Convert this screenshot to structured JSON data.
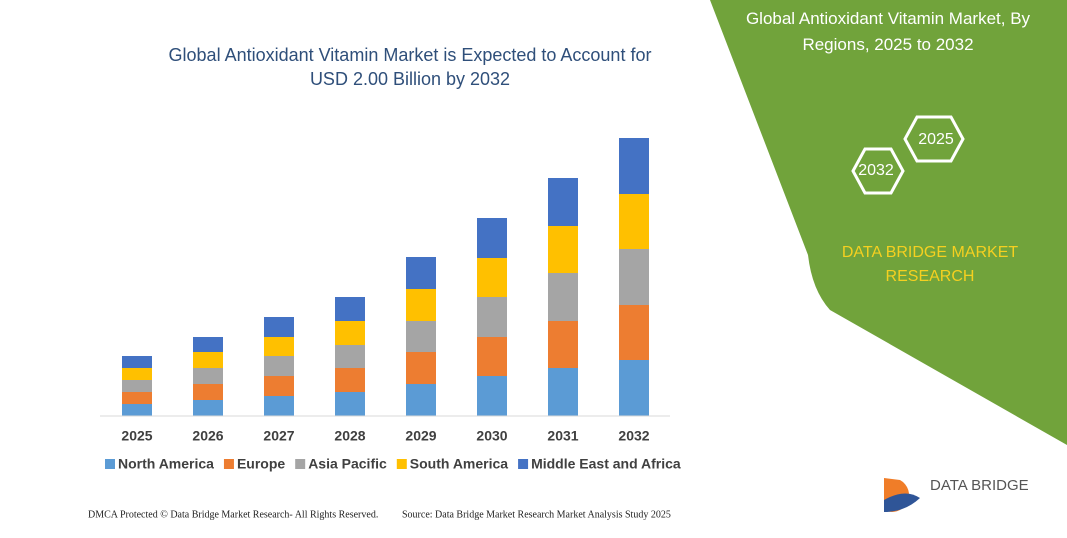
{
  "chart_data": {
    "type": "stacked_bar",
    "title": "Global Antioxidant Vitamin Market is Expected to Account for USD 2.00 Billion by 2032",
    "categories": [
      "2025",
      "2026",
      "2027",
      "2028",
      "2029",
      "2030",
      "2031",
      "2032"
    ],
    "series": [
      {
        "name": "North America",
        "color": "#5b9bd5",
        "values": [
          12,
          16,
          20,
          24,
          32,
          40,
          48,
          56
        ]
      },
      {
        "name": "Europe",
        "color": "#ed7d31",
        "values": [
          12,
          16,
          20,
          24,
          32,
          39,
          47,
          55
        ]
      },
      {
        "name": "Asia Pacific",
        "color": "#a5a5a5",
        "values": [
          12,
          16,
          20,
          23,
          31,
          40,
          48,
          56
        ]
      },
      {
        "name": "South America",
        "color": "#ffc000",
        "values": [
          12,
          16,
          19,
          24,
          32,
          39,
          47,
          55
        ]
      },
      {
        "name": "Middle East and Africa",
        "color": "#4472c4",
        "values": [
          12,
          15,
          20,
          24,
          32,
          40,
          48,
          56
        ]
      }
    ]
  },
  "panel": {
    "title": "Global Antioxidant Vitamin Market, By Regions, 2025 to 2032",
    "hexagons": [
      "2025",
      "2032"
    ],
    "brand": "DATA BRIDGE MARKET RESEARCH"
  },
  "logo": {
    "text": "DATA BRIDGE"
  },
  "footer": {
    "left": "DMCA Protected © Data Bridge Market Research- All Rights Reserved.",
    "right": "Source: Data Bridge Market Research Market Analysis Study 2025"
  }
}
